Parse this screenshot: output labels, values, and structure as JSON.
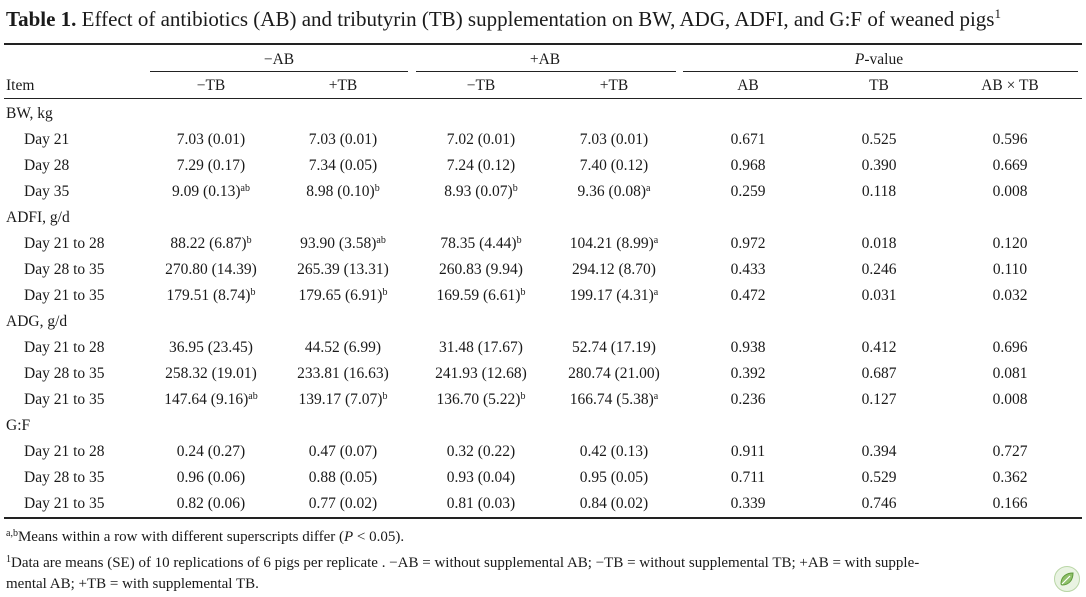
{
  "title": {
    "label": "Table 1.",
    "text": "Effect of antibiotics (AB) and tributyrin (TB) supplementation on BW, ADG, ADFI, and G:F of weaned pigs",
    "sup": "1"
  },
  "header": {
    "group_minus_ab": "−AB",
    "group_plus_ab": "+AB",
    "group_pvalue_italic": "P",
    "group_pvalue_rest": "-value",
    "item": "Item",
    "cols": [
      "−TB",
      "+TB",
      "−TB",
      "+TB",
      "AB",
      "TB",
      "AB × TB"
    ]
  },
  "rows": [
    {
      "type": "section",
      "label": "BW, kg"
    },
    {
      "type": "data",
      "label": "Day 21",
      "cells": [
        {
          "v": "7.03 (0.01)",
          "s": ""
        },
        {
          "v": "7.03 (0.01)",
          "s": ""
        },
        {
          "v": "7.02 (0.01)",
          "s": ""
        },
        {
          "v": "7.03 (0.01)",
          "s": ""
        }
      ],
      "p": [
        "0.671",
        "0.525",
        "0.596"
      ]
    },
    {
      "type": "data",
      "label": "Day 28",
      "cells": [
        {
          "v": "7.29 (0.17)",
          "s": ""
        },
        {
          "v": "7.34 (0.05)",
          "s": ""
        },
        {
          "v": "7.24 (0.12)",
          "s": ""
        },
        {
          "v": "7.40 (0.12)",
          "s": ""
        }
      ],
      "p": [
        "0.968",
        "0.390",
        "0.669"
      ]
    },
    {
      "type": "data",
      "label": "Day 35",
      "cells": [
        {
          "v": "9.09 (0.13)",
          "s": "ab"
        },
        {
          "v": "8.98 (0.10)",
          "s": "b"
        },
        {
          "v": "8.93 (0.07)",
          "s": "b"
        },
        {
          "v": "9.36 (0.08)",
          "s": "a"
        }
      ],
      "p": [
        "0.259",
        "0.118",
        "0.008"
      ]
    },
    {
      "type": "section",
      "label": "ADFI, g/d"
    },
    {
      "type": "data",
      "label": "Day 21 to 28",
      "cells": [
        {
          "v": "88.22 (6.87)",
          "s": "b"
        },
        {
          "v": "93.90 (3.58)",
          "s": "ab"
        },
        {
          "v": "78.35 (4.44)",
          "s": "b"
        },
        {
          "v": "104.21 (8.99)",
          "s": "a"
        }
      ],
      "p": [
        "0.972",
        "0.018",
        "0.120"
      ]
    },
    {
      "type": "data",
      "label": "Day 28 to 35",
      "cells": [
        {
          "v": "270.80 (14.39)",
          "s": ""
        },
        {
          "v": "265.39 (13.31)",
          "s": ""
        },
        {
          "v": "260.83 (9.94)",
          "s": ""
        },
        {
          "v": "294.12 (8.70)",
          "s": ""
        }
      ],
      "p": [
        "0.433",
        "0.246",
        "0.110"
      ]
    },
    {
      "type": "data",
      "label": "Day 21 to 35",
      "cells": [
        {
          "v": "179.51 (8.74)",
          "s": "b"
        },
        {
          "v": "179.65 (6.91)",
          "s": "b"
        },
        {
          "v": "169.59 (6.61)",
          "s": "b"
        },
        {
          "v": "199.17 (4.31)",
          "s": "a"
        }
      ],
      "p": [
        "0.472",
        "0.031",
        "0.032"
      ]
    },
    {
      "type": "section",
      "label": "ADG, g/d"
    },
    {
      "type": "data",
      "label": "Day 21 to 28",
      "cells": [
        {
          "v": "36.95 (23.45)",
          "s": ""
        },
        {
          "v": "44.52 (6.99)",
          "s": ""
        },
        {
          "v": "31.48 (17.67)",
          "s": ""
        },
        {
          "v": "52.74 (17.19)",
          "s": ""
        }
      ],
      "p": [
        "0.938",
        "0.412",
        "0.696"
      ]
    },
    {
      "type": "data",
      "label": "Day 28 to 35",
      "cells": [
        {
          "v": "258.32 (19.01)",
          "s": ""
        },
        {
          "v": "233.81 (16.63)",
          "s": ""
        },
        {
          "v": "241.93 (12.68)",
          "s": ""
        },
        {
          "v": "280.74 (21.00)",
          "s": ""
        }
      ],
      "p": [
        "0.392",
        "0.687",
        "0.081"
      ]
    },
    {
      "type": "data",
      "label": "Day 21 to 35",
      "cells": [
        {
          "v": "147.64 (9.16)",
          "s": "ab"
        },
        {
          "v": "139.17 (7.07)",
          "s": "b"
        },
        {
          "v": "136.70 (5.22)",
          "s": "b"
        },
        {
          "v": "166.74 (5.38)",
          "s": "a"
        }
      ],
      "p": [
        "0.236",
        "0.127",
        "0.008"
      ]
    },
    {
      "type": "section",
      "label": "G:F"
    },
    {
      "type": "data",
      "label": "Day 21 to 28",
      "cells": [
        {
          "v": "0.24 (0.27)",
          "s": ""
        },
        {
          "v": "0.47 (0.07)",
          "s": ""
        },
        {
          "v": "0.32 (0.22)",
          "s": ""
        },
        {
          "v": "0.42 (0.13)",
          "s": ""
        }
      ],
      "p": [
        "0.911",
        "0.394",
        "0.727"
      ]
    },
    {
      "type": "data",
      "label": "Day 28 to 35",
      "cells": [
        {
          "v": "0.96 (0.06)",
          "s": ""
        },
        {
          "v": "0.88 (0.05)",
          "s": ""
        },
        {
          "v": "0.93 (0.04)",
          "s": ""
        },
        {
          "v": "0.95 (0.05)",
          "s": ""
        }
      ],
      "p": [
        "0.711",
        "0.529",
        "0.362"
      ]
    },
    {
      "type": "data",
      "label": "Day 21 to 35",
      "cells": [
        {
          "v": "0.82 (0.06)",
          "s": ""
        },
        {
          "v": "0.77 (0.02)",
          "s": ""
        },
        {
          "v": "0.81 (0.03)",
          "s": ""
        },
        {
          "v": "0.84 (0.02)",
          "s": ""
        }
      ],
      "p": [
        "0.339",
        "0.746",
        "0.166"
      ]
    }
  ],
  "footnotes": {
    "note_a_sup": "a,b",
    "note_a_before": "Means within a row with different superscripts differ (",
    "note_a_italic": "P",
    "note_a_after": " < 0.05).",
    "note_1_sup": "1",
    "note_1_line1": "Data are means (SE) of 10 replications of 6 pigs per replicate . −AB = without supplemental AB; −TB = without supplemental TB; +AB = with supple-",
    "note_1_line2": "mental AB; +TB = with supplemental TB."
  },
  "logo_icon": "leaf-logo-icon"
}
